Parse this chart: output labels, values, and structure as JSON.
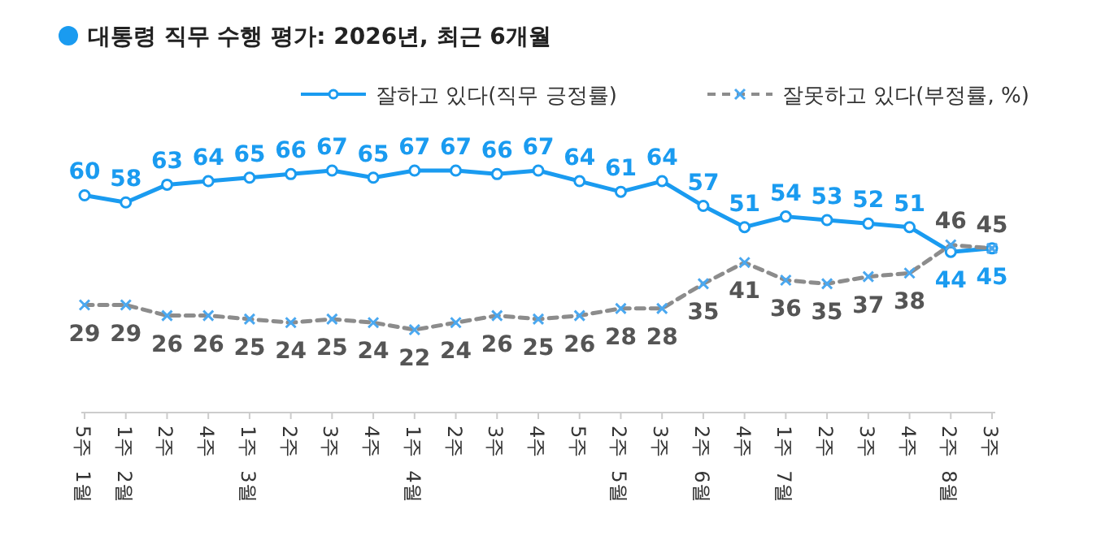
{
  "chart_data": {
    "type": "line",
    "title": "대통령 직무 수행 평가: 2026년, 최근 6개월",
    "categories": [
      "5주 1월",
      "1주 2월",
      "2주",
      "4주",
      "1주 3월",
      "2주",
      "3주",
      "4주",
      "1주 4월",
      "2주",
      "3주",
      "4주",
      "5주",
      "2주 5월",
      "3주",
      "2주 6월",
      "4주",
      "1주 7월",
      "2주",
      "3주",
      "4주",
      "2주 8월",
      "3주"
    ],
    "series": [
      {
        "name": "잘하고 있다(직무 긍정률)",
        "color": "#1a9bf0",
        "marker": "circle",
        "line_style": "solid",
        "values": [
          60,
          58,
          63,
          64,
          65,
          66,
          67,
          65,
          67,
          67,
          66,
          67,
          64,
          61,
          64,
          57,
          51,
          54,
          53,
          52,
          51,
          44,
          45
        ]
      },
      {
        "name": "잘못하고 있다(부정률, %)",
        "color": "#8c8c8c",
        "marker": "cross",
        "line_style": "dashed",
        "values": [
          29,
          29,
          26,
          26,
          25,
          24,
          25,
          24,
          22,
          24,
          26,
          25,
          26,
          28,
          28,
          35,
          41,
          36,
          35,
          37,
          38,
          46,
          45
        ]
      }
    ],
    "data_labels": true,
    "legend": "top right"
  }
}
